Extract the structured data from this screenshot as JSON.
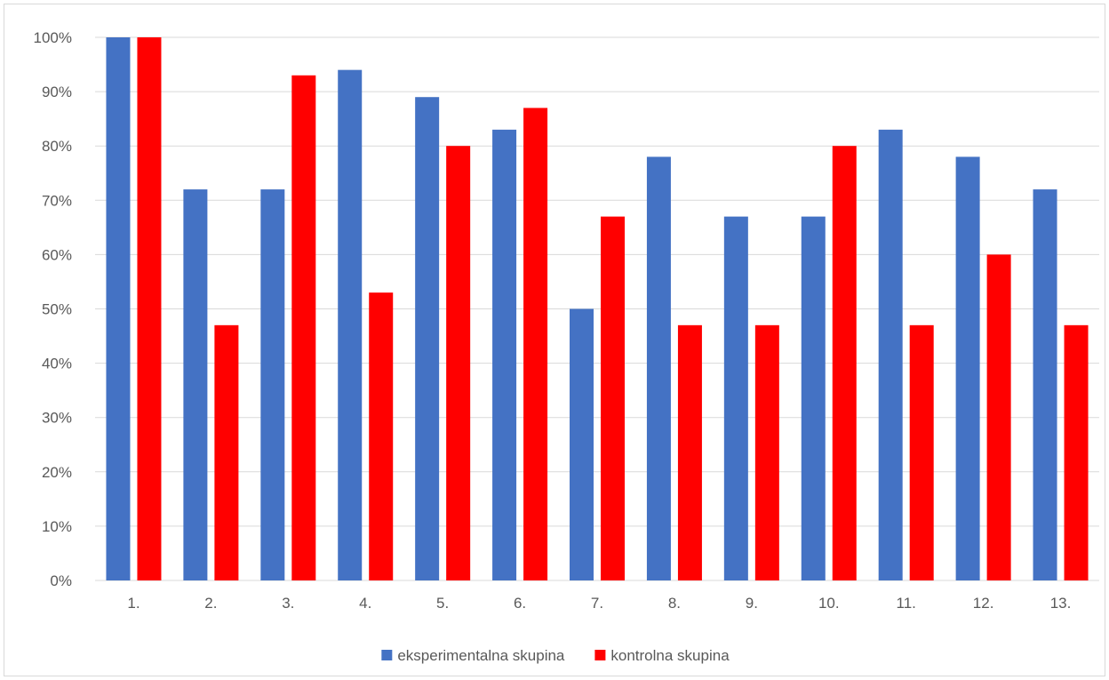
{
  "chart_data": {
    "type": "bar",
    "title": "",
    "xlabel": "",
    "ylabel": "",
    "categories": [
      "1.",
      "2.",
      "3.",
      "4.",
      "5.",
      "6.",
      "7.",
      "8.",
      "9.",
      "10.",
      "11.",
      "12.",
      "13."
    ],
    "series": [
      {
        "name": "eksperimentalna skupina",
        "color": "#4472C4",
        "values": [
          100,
          72,
          72,
          94,
          89,
          83,
          50,
          78,
          67,
          67,
          83,
          78,
          72
        ]
      },
      {
        "name": "kontrolna skupina",
        "color": "#FF0000",
        "values": [
          100,
          47,
          93,
          53,
          80,
          87,
          67,
          47,
          47,
          80,
          47,
          60,
          47
        ]
      }
    ],
    "ylim": [
      0,
      100
    ],
    "yticks": [
      "0%",
      "10%",
      "20%",
      "30%",
      "40%",
      "50%",
      "60%",
      "70%",
      "80%",
      "90%",
      "100%"
    ],
    "grid": true,
    "legend_position": "bottom"
  }
}
